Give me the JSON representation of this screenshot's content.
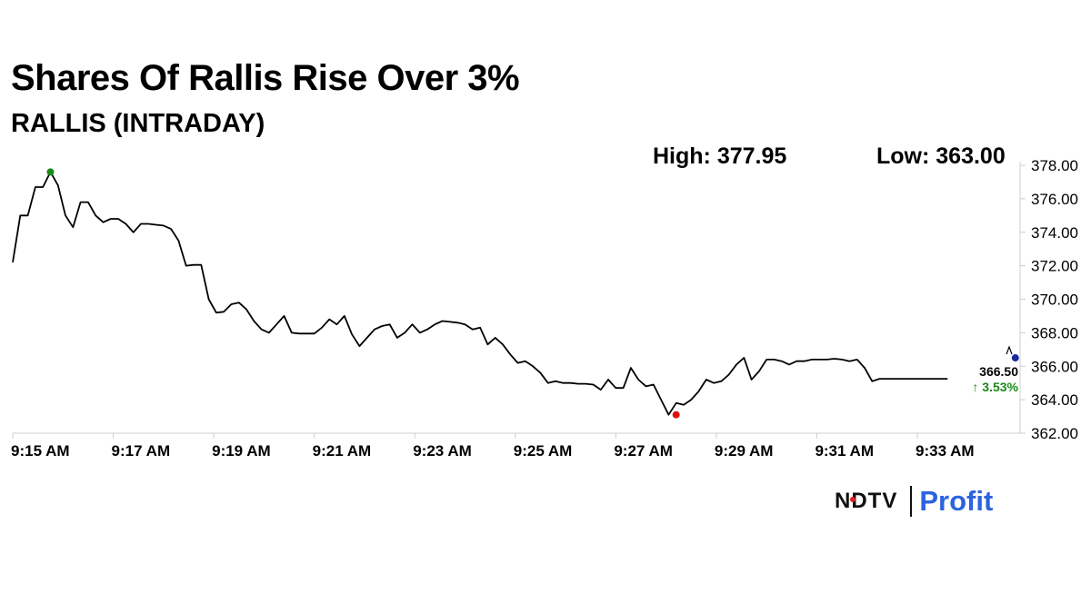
{
  "header": {
    "title": "Shares Of Rallis Rise Over 3%",
    "subtitle": "RALLIS (INTRADAY)",
    "high_label": "High: 377.95",
    "low_label": "Low: 363.00"
  },
  "logo": {
    "brand": "NDTV",
    "product": "Profit",
    "brand_dot_color": "#e02020",
    "product_color": "#2b63e0"
  },
  "chart_data": {
    "type": "line",
    "title": "Shares Of Rallis Rise Over 3%",
    "subtitle": "RALLIS (INTRADAY)",
    "x_tick_labels": [
      "9:15 AM",
      "9:17 AM",
      "9:19 AM",
      "9:21 AM",
      "9:23 AM",
      "9:25 AM",
      "9:27 AM",
      "9:29 AM",
      "9:31 AM",
      "9:33 AM"
    ],
    "x_tick_minutes": [
      0,
      2,
      4,
      6,
      8,
      10,
      12,
      14,
      16,
      18
    ],
    "xlim_minutes": [
      0,
      20
    ],
    "y_tick_labels": [
      "378.00",
      "376.00",
      "374.00",
      "372.00",
      "370.00",
      "368.00",
      "366.00",
      "364.00",
      "362.00"
    ],
    "ylim": [
      362,
      378
    ],
    "y_axis_position": "right",
    "grid": false,
    "line_color": "#000000",
    "series": [
      {
        "x_minutes": [
          0,
          0.15,
          0.3,
          0.45,
          0.6,
          0.75,
          0.9,
          1.05,
          1.2,
          1.35,
          1.5,
          1.65,
          1.8,
          1.95,
          2.1,
          2.25,
          2.4,
          2.55,
          2.7,
          2.85,
          3.0,
          3.15,
          3.3,
          3.45,
          3.6,
          3.75,
          3.9,
          4.05,
          4.2,
          4.35,
          4.5,
          4.65,
          4.8,
          4.95,
          5.1,
          5.25,
          5.4,
          5.55,
          5.7,
          5.85,
          6.0,
          6.15,
          6.3,
          6.45,
          6.6,
          6.75,
          6.9,
          7.05,
          7.2,
          7.35,
          7.5,
          7.65,
          7.8,
          7.95,
          8.1,
          8.25,
          8.4,
          8.55,
          8.7,
          8.85,
          9.0,
          9.15,
          9.3,
          9.45,
          9.6,
          9.75,
          9.9,
          10.05,
          10.2,
          10.35,
          10.5,
          10.65,
          10.8,
          10.95,
          11.1,
          11.25,
          11.4,
          11.55,
          11.7,
          11.85,
          12.0,
          12.15,
          12.3,
          12.45,
          12.6,
          12.75,
          12.9,
          13.05,
          13.2,
          13.35,
          13.5,
          13.65,
          13.8,
          13.95,
          14.1,
          14.25,
          14.4,
          14.55,
          14.7,
          14.85,
          15.0,
          15.15,
          15.3,
          15.45,
          15.6,
          15.75,
          15.9,
          16.05,
          16.2,
          16.35,
          16.5,
          16.65,
          16.8,
          16.95,
          17.1,
          17.25,
          17.4,
          17.55,
          17.7,
          17.85,
          18.0,
          18.15,
          18.3,
          18.45,
          18.6
        ],
        "values": [
          372.2,
          375.0,
          375.0,
          376.7,
          376.7,
          377.6,
          376.8,
          375.0,
          374.3,
          375.8,
          375.8,
          375.0,
          374.6,
          374.8,
          374.8,
          374.5,
          374.0,
          374.5,
          374.5,
          374.45,
          374.4,
          374.2,
          373.5,
          372.0,
          372.05,
          372.05,
          370.0,
          369.2,
          369.25,
          369.7,
          369.8,
          369.4,
          368.7,
          368.2,
          368.0,
          368.5,
          369.0,
          368.0,
          367.95,
          367.95,
          367.95,
          368.3,
          368.8,
          368.5,
          369.0,
          367.9,
          367.2,
          367.7,
          368.2,
          368.4,
          368.5,
          367.7,
          368.0,
          368.5,
          368.0,
          368.2,
          368.5,
          368.7,
          368.65,
          368.6,
          368.5,
          368.2,
          368.3,
          367.3,
          367.7,
          367.3,
          366.7,
          366.2,
          366.3,
          366.0,
          365.6,
          365.0,
          365.1,
          365.0,
          365.0,
          364.95,
          364.95,
          364.9,
          364.6,
          365.2,
          364.7,
          364.7,
          365.9,
          365.2,
          364.8,
          364.9,
          364.0,
          363.1,
          363.8,
          363.7,
          364.0,
          364.5,
          365.2,
          365.0,
          365.1,
          365.5,
          366.1,
          366.5,
          365.2,
          365.7,
          366.4,
          366.4,
          366.3,
          366.1,
          366.3,
          366.3,
          366.4,
          366.4,
          366.4,
          366.45,
          366.4,
          366.3,
          366.4,
          365.9,
          365.1,
          365.25,
          365.25,
          365.25,
          365.25,
          365.25,
          365.25,
          365.25,
          365.25,
          365.25,
          365.25
        ]
      }
    ],
    "markers": [
      {
        "name": "high",
        "x_minute": 0.75,
        "value": 377.6,
        "color": "#1a8a1a"
      },
      {
        "name": "low",
        "x_minute": 13.2,
        "value": 363.1,
        "color": "#e01010"
      },
      {
        "name": "last",
        "x_minute": 19.95,
        "value": 366.5,
        "color": "#1a2a9c"
      }
    ],
    "last_price_label": "366.50",
    "change_label": "↑ 3.53%",
    "change_color": "#1a8a1a"
  }
}
